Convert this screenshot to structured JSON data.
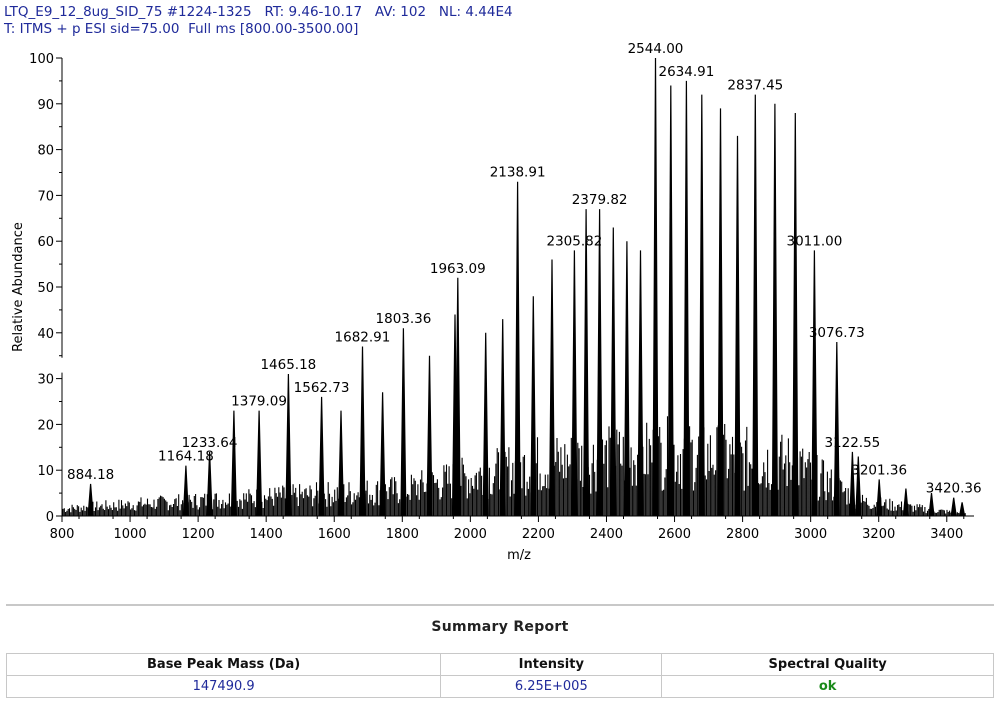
{
  "header": {
    "line1": "LTQ_E9_12_8ug_SID_75 #1224-1325   RT: 9.46-10.17   AV: 102   NL: 4.44E4",
    "line2": "T: ITMS + p ESI sid=75.00  Full ms [800.00-3500.00]"
  },
  "chart_data": {
    "type": "line",
    "style": "mass-spectrum",
    "xlabel": "m/z",
    "ylabel": "Relative Abundance",
    "xlim": [
      800,
      3480
    ],
    "ylim": [
      0,
      100
    ],
    "xticks": [
      800,
      1000,
      1200,
      1400,
      1600,
      1800,
      2000,
      2200,
      2400,
      2600,
      2800,
      3000,
      3200,
      3400
    ],
    "yticks": [
      0,
      10,
      20,
      30,
      40,
      50,
      60,
      70,
      80,
      90,
      100
    ],
    "axis_break": [
      30,
      35
    ],
    "colors": {
      "trace": "#000000",
      "axis": "#000000",
      "text": "#000000"
    },
    "peaks": [
      {
        "mz": 884.18,
        "intensity": 7,
        "label": "884.18"
      },
      {
        "mz": 1164.18,
        "intensity": 11,
        "label": "1164.18"
      },
      {
        "mz": 1233.64,
        "intensity": 14,
        "label": "1233.64"
      },
      {
        "mz": 1305,
        "intensity": 23
      },
      {
        "mz": 1379.09,
        "intensity": 23,
        "label": "1379.09"
      },
      {
        "mz": 1465.18,
        "intensity": 31,
        "label": "1465.18"
      },
      {
        "mz": 1562.73,
        "intensity": 26,
        "label": "1562.73"
      },
      {
        "mz": 1620,
        "intensity": 23
      },
      {
        "mz": 1682.91,
        "intensity": 37,
        "label": "1682.91"
      },
      {
        "mz": 1742,
        "intensity": 27
      },
      {
        "mz": 1803.36,
        "intensity": 41,
        "label": "1803.36"
      },
      {
        "mz": 1880,
        "intensity": 35
      },
      {
        "mz": 1955,
        "intensity": 44
      },
      {
        "mz": 1963.09,
        "intensity": 52,
        "label": "1963.09"
      },
      {
        "mz": 2045,
        "intensity": 40
      },
      {
        "mz": 2095,
        "intensity": 43
      },
      {
        "mz": 2138.91,
        "intensity": 73,
        "label": "2138.91"
      },
      {
        "mz": 2185,
        "intensity": 48
      },
      {
        "mz": 2240,
        "intensity": 56
      },
      {
        "mz": 2305.82,
        "intensity": 58,
        "label": "2305.82"
      },
      {
        "mz": 2340,
        "intensity": 67
      },
      {
        "mz": 2379.82,
        "intensity": 67,
        "label": "2379.82"
      },
      {
        "mz": 2420,
        "intensity": 63
      },
      {
        "mz": 2460,
        "intensity": 60
      },
      {
        "mz": 2500,
        "intensity": 58
      },
      {
        "mz": 2544.0,
        "intensity": 100,
        "label": "2544.00"
      },
      {
        "mz": 2589,
        "intensity": 94
      },
      {
        "mz": 2634.91,
        "intensity": 95,
        "label": "2634.91"
      },
      {
        "mz": 2680,
        "intensity": 92
      },
      {
        "mz": 2735,
        "intensity": 89
      },
      {
        "mz": 2785,
        "intensity": 83
      },
      {
        "mz": 2837.45,
        "intensity": 92,
        "label": "2837.45"
      },
      {
        "mz": 2895,
        "intensity": 90
      },
      {
        "mz": 2955,
        "intensity": 88
      },
      {
        "mz": 3011.0,
        "intensity": 58,
        "label": "3011.00"
      },
      {
        "mz": 3076.73,
        "intensity": 38,
        "label": "3076.73"
      },
      {
        "mz": 3122.55,
        "intensity": 14,
        "label": "3122.55"
      },
      {
        "mz": 3140,
        "intensity": 13
      },
      {
        "mz": 3201.36,
        "intensity": 8,
        "label": "3201.36"
      },
      {
        "mz": 3280,
        "intensity": 6
      },
      {
        "mz": 3355,
        "intensity": 5
      },
      {
        "mz": 3420.36,
        "intensity": 4,
        "label": "3420.36"
      },
      {
        "mz": 3445,
        "intensity": 3
      }
    ]
  },
  "summary": {
    "title": "Summary Report",
    "columns": [
      "Base Peak Mass (Da)",
      "Intensity",
      "Spectral Quality"
    ],
    "row": [
      "147490.9",
      "6.25E+005",
      "ok"
    ]
  }
}
